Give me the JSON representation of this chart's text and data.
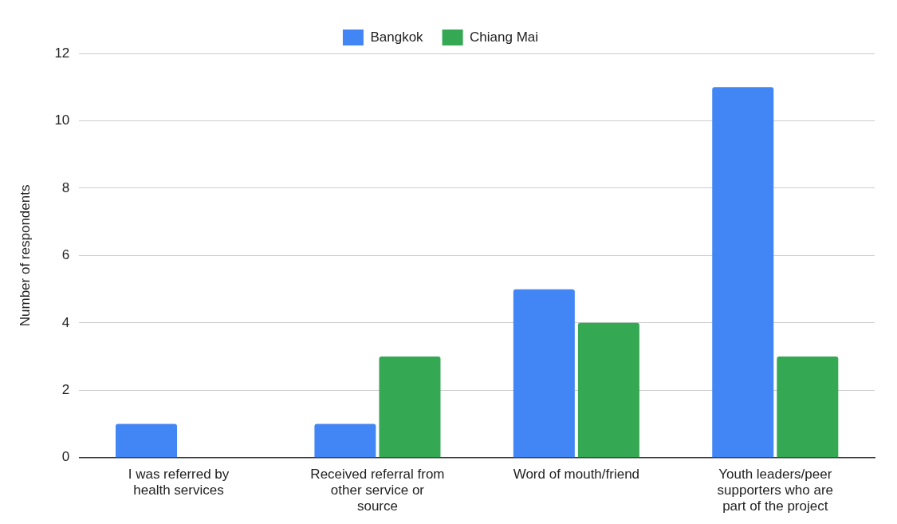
{
  "chart_data": {
    "type": "bar",
    "ylabel": "Number of respondents",
    "categories": [
      "I was referred by health services",
      "Received referral from other service or source",
      "Word of mouth/friend",
      "Youth leaders/peer supporters who are part of the project"
    ],
    "series": [
      {
        "name": "Bangkok",
        "color": "#4285f4",
        "values": [
          1,
          1,
          5,
          11
        ]
      },
      {
        "name": "Chiang Mai",
        "color": "#34a853",
        "values": [
          0,
          3,
          4,
          3
        ]
      }
    ],
    "ylim": [
      0,
      12
    ],
    "yticks": [
      0,
      2,
      4,
      6,
      8,
      10,
      12
    ],
    "grid": "y",
    "legend": "top"
  }
}
